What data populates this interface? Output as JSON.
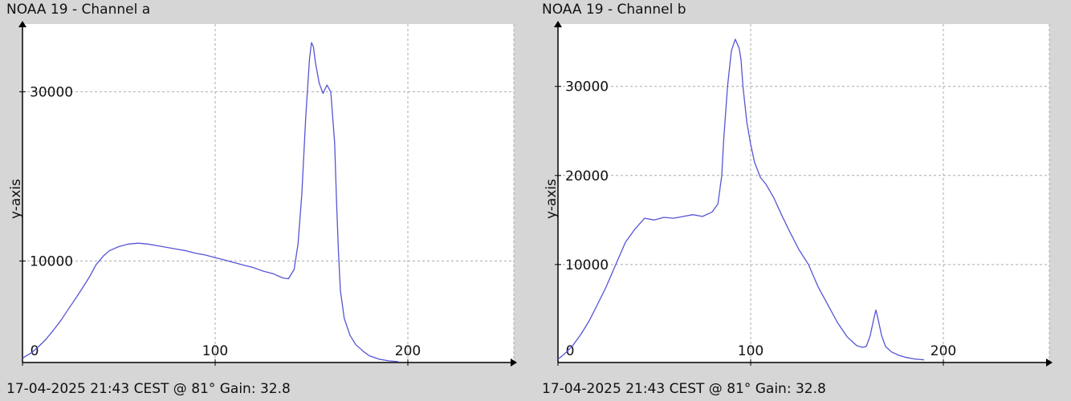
{
  "chart_data": [
    {
      "type": "line",
      "title": "NOAA 19 - Channel a",
      "ylabel": "y-axis",
      "footer": "17-04-2025 21:43 CEST @ 81° Gain: 32.8",
      "grid": true,
      "xlim": [
        0,
        255
      ],
      "ylim": [
        -2000,
        38000
      ],
      "xticks": [
        0,
        100,
        200
      ],
      "yticks": [
        10000,
        30000
      ],
      "color": "#5555d4",
      "series": [
        {
          "x": [
            0,
            2,
            5,
            8,
            12,
            16,
            20,
            25,
            30,
            35,
            38,
            42,
            45,
            50,
            55,
            60,
            65,
            70,
            75,
            80,
            85,
            90,
            95,
            100,
            105,
            110,
            115,
            120,
            125,
            130,
            135,
            138,
            141,
            143,
            145,
            147,
            149,
            150,
            151,
            152,
            154,
            156,
            158,
            160,
            162,
            163,
            164,
            165,
            167,
            170,
            173,
            177,
            180,
            185,
            190,
            195
          ],
          "y": [
            -1500,
            -1200,
            -800,
            -200,
            700,
            1800,
            3000,
            4700,
            6400,
            8200,
            9500,
            10600,
            11200,
            11700,
            12000,
            12100,
            12000,
            11800,
            11600,
            11400,
            11200,
            10900,
            10700,
            10400,
            10100,
            9800,
            9500,
            9200,
            8800,
            8500,
            8000,
            7900,
            9000,
            12000,
            18000,
            27000,
            34000,
            35800,
            35300,
            33500,
            31000,
            29800,
            30800,
            30000,
            24000,
            17000,
            11000,
            6500,
            3200,
            1200,
            100,
            -700,
            -1200,
            -1600,
            -1800,
            -1900
          ]
        }
      ]
    },
    {
      "type": "line",
      "title": "NOAA 19 - Channel b",
      "ylabel": "y-axis",
      "footer": "17-04-2025 21:43 CEST @ 81° Gain: 32.8",
      "grid": true,
      "xlim": [
        0,
        255
      ],
      "ylim": [
        -1000,
        37000
      ],
      "xticks": [
        0,
        100,
        200
      ],
      "yticks": [
        10000,
        20000,
        30000
      ],
      "color": "#5555d4",
      "series": [
        {
          "x": [
            0,
            2,
            5,
            8,
            12,
            16,
            20,
            25,
            30,
            35,
            40,
            45,
            50,
            55,
            60,
            65,
            70,
            75,
            80,
            83,
            85,
            86,
            88,
            90,
            92,
            94,
            95,
            96,
            98,
            100,
            102,
            105,
            108,
            112,
            116,
            120,
            125,
            130,
            135,
            140,
            145,
            150,
            155,
            158,
            160,
            162,
            164,
            165,
            166,
            168,
            170,
            173,
            177,
            180,
            185,
            190
          ],
          "y": [
            -600,
            -300,
            300,
            1000,
            2200,
            3600,
            5300,
            7500,
            10000,
            12500,
            14000,
            15200,
            15000,
            15300,
            15200,
            15400,
            15600,
            15400,
            15900,
            16800,
            20000,
            24000,
            30000,
            34000,
            35300,
            34300,
            33000,
            30000,
            26000,
            23500,
            21500,
            19800,
            19000,
            17500,
            15600,
            13800,
            11700,
            10000,
            7500,
            5500,
            3500,
            1900,
            900,
            700,
            800,
            2000,
            4000,
            4900,
            4000,
            2000,
            800,
            200,
            -200,
            -400,
            -600,
            -700
          ]
        }
      ]
    }
  ]
}
